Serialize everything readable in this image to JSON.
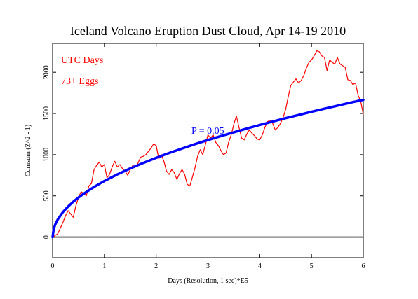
{
  "chart_data": {
    "type": "line",
    "title": "Iceland Volcano Eruption Dust Cloud, Apr 14-19 2010",
    "xlabel": "Days (Resolution, 1 sec)*E5",
    "ylabel": "Cumsum (Z^2 - 1)",
    "xlim": [
      0,
      6
    ],
    "ylim": [
      -250,
      2350
    ],
    "x_ticks": [
      0,
      1,
      2,
      3,
      4,
      5,
      6
    ],
    "y_ticks": [
      0,
      500,
      1000,
      1500,
      2000
    ],
    "legend": [
      "UTC Days",
      "73+ Eggs"
    ],
    "annotation": "P = 0.05",
    "grid": false,
    "series": [
      {
        "color": "#ff0000",
        "x": [
          0,
          0.05,
          0.1,
          0.15,
          0.2,
          0.25,
          0.3,
          0.35,
          0.4,
          0.45,
          0.5,
          0.55,
          0.6,
          0.65,
          0.7,
          0.75,
          0.8,
          0.85,
          0.9,
          0.95,
          1.0,
          1.05,
          1.1,
          1.15,
          1.2,
          1.25,
          1.3,
          1.35,
          1.4,
          1.45,
          1.5,
          1.55,
          1.6,
          1.65,
          1.7,
          1.75,
          1.8,
          1.85,
          1.9,
          1.95,
          2.0,
          2.05,
          2.1,
          2.15,
          2.2,
          2.25,
          2.3,
          2.35,
          2.4,
          2.45,
          2.5,
          2.55,
          2.6,
          2.65,
          2.7,
          2.75,
          2.8,
          2.85,
          2.9,
          2.95,
          3.0,
          3.05,
          3.1,
          3.15,
          3.2,
          3.25,
          3.3,
          3.35,
          3.4,
          3.45,
          3.5,
          3.55,
          3.6,
          3.65,
          3.7,
          3.75,
          3.8,
          3.85,
          3.9,
          3.95,
          4.0,
          4.05,
          4.1,
          4.15,
          4.2,
          4.25,
          4.3,
          4.35,
          4.4,
          4.45,
          4.5,
          4.55,
          4.6,
          4.65,
          4.7,
          4.75,
          4.8,
          4.85,
          4.9,
          4.95,
          5.0,
          5.05,
          5.1,
          5.15,
          5.2,
          5.25,
          5.3,
          5.35,
          5.4,
          5.45,
          5.5,
          5.55,
          5.6,
          5.65,
          5.7,
          5.75,
          5.8,
          5.85,
          5.9,
          5.95,
          6.0
        ],
        "y": [
          0,
          20,
          40,
          110,
          180,
          260,
          320,
          280,
          240,
          380,
          480,
          550,
          530,
          500,
          620,
          650,
          820,
          870,
          910,
          850,
          880,
          720,
          760,
          850,
          920,
          850,
          880,
          830,
          800,
          750,
          820,
          870,
          850,
          900,
          970,
          980,
          1000,
          1040,
          1080,
          1130,
          1110,
          950,
          1000,
          920,
          800,
          760,
          820,
          780,
          700,
          770,
          820,
          760,
          640,
          620,
          730,
          840,
          980,
          1060,
          1000,
          1120,
          1240,
          1200,
          1240,
          1150,
          1110,
          1050,
          1000,
          1020,
          1150,
          1240,
          1370,
          1470,
          1330,
          1200,
          1180,
          1250,
          1300,
          1260,
          1230,
          1190,
          1180,
          1240,
          1330,
          1400,
          1420,
          1380,
          1300,
          1330,
          1380,
          1450,
          1550,
          1700,
          1840,
          1880,
          1920,
          1870,
          1900,
          1960,
          2050,
          2120,
          2150,
          2200,
          2260,
          2250,
          2200,
          2180,
          2020,
          2150,
          2120,
          2100,
          2180,
          2100,
          2080,
          2060,
          1910,
          1900,
          1850,
          1870,
          1720,
          1650,
          1490
        ]
      },
      {
        "color": "#0000ff",
        "formula": "K * sqrt(x)",
        "x": [
          0.0,
          0.02,
          0.05,
          0.1,
          0.2,
          0.3,
          0.4,
          0.5,
          0.6,
          0.8,
          1.0,
          1.25,
          1.5,
          1.75,
          2.0,
          2.25,
          2.5,
          2.75,
          3.0,
          3.25,
          3.5,
          3.75,
          4.0,
          4.25,
          4.5,
          4.75,
          5.0,
          5.25,
          5.5,
          5.75,
          6.0
        ],
        "y": [
          0,
          96,
          152,
          215,
          304,
          372,
          430,
          480,
          526,
          608,
          680,
          760,
          833,
          900,
          962,
          1020,
          1075,
          1128,
          1178,
          1226,
          1272,
          1317,
          1360,
          1402,
          1443,
          1482,
          1521,
          1558,
          1595,
          1631,
          1666
        ]
      },
      {
        "color": "#000000",
        "x": [
          0,
          6
        ],
        "y": [
          0,
          0
        ]
      }
    ]
  }
}
